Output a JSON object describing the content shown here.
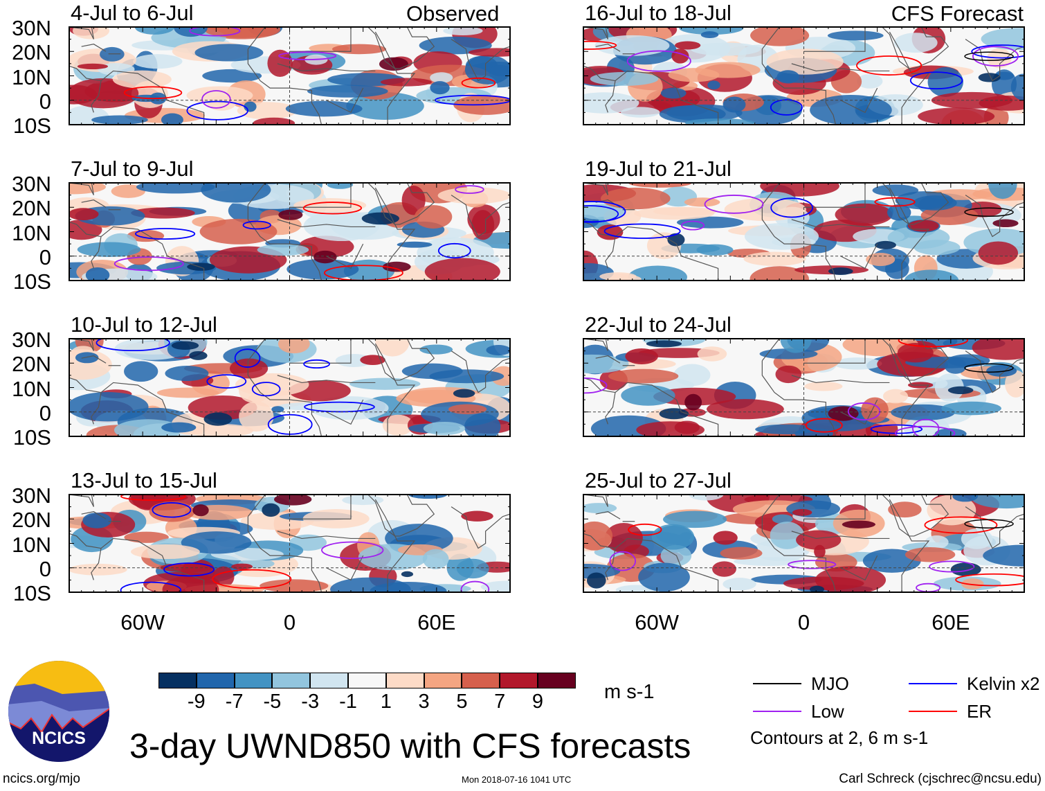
{
  "figure": {
    "title": "3-day UWND850 with CFS forecasts",
    "left_column_label": "Observed",
    "right_column_label": "CFS Forecast",
    "units": "m s-1",
    "footer_left": "ncics.org/mjo",
    "footer_center": "Mon 2018-07-16 1041 UTC",
    "footer_right": "Carl Schreck (cjschrec@ncsu.edu)",
    "logo_text": "NCICS"
  },
  "chart_data": {
    "type": "heatmap",
    "variable": "850-hPa zonal wind anomaly",
    "lon_range": [
      -90,
      90
    ],
    "lat_range": [
      -10,
      30
    ],
    "lat_ticks": [
      "30N",
      "20N",
      "10N",
      "0",
      "10S"
    ],
    "lon_ticks": [
      "60W",
      "0",
      "60E"
    ],
    "panels": [
      {
        "title": "4-Jul to 6-Jul",
        "kind": "observed"
      },
      {
        "title": "7-Jul to 9-Jul",
        "kind": "observed"
      },
      {
        "title": "10-Jul to 12-Jul",
        "kind": "observed"
      },
      {
        "title": "13-Jul to 15-Jul",
        "kind": "observed"
      },
      {
        "title": "16-Jul to 18-Jul",
        "kind": "forecast"
      },
      {
        "title": "19-Jul to 21-Jul",
        "kind": "forecast"
      },
      {
        "title": "22-Jul to 24-Jul",
        "kind": "forecast"
      },
      {
        "title": "25-Jul to 27-Jul",
        "kind": "forecast"
      }
    ],
    "colorbar": {
      "ticks": [
        "-9",
        "-7",
        "-5",
        "-3",
        "-1",
        "1",
        "3",
        "5",
        "7",
        "9"
      ],
      "colors": [
        "#053061",
        "#2166ac",
        "#4393c3",
        "#92c5de",
        "#d1e5f0",
        "#f7f7f7",
        "#fddbc7",
        "#f4a582",
        "#d6604d",
        "#b2182b",
        "#67001f"
      ]
    },
    "legend": {
      "items": [
        {
          "label": "MJO",
          "color": "#000000"
        },
        {
          "label": "Kelvin x2",
          "color": "#0000ff"
        },
        {
          "label": "Low",
          "color": "#a020f0"
        },
        {
          "label": "ER",
          "color": "#ff0000"
        }
      ],
      "note": "Contours at 2, 6 m s-1"
    }
  }
}
